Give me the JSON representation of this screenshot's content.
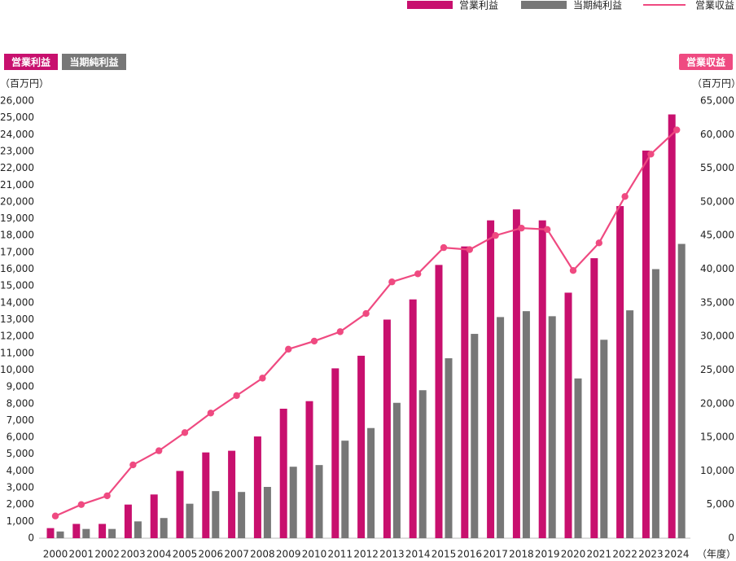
{
  "chart_data": {
    "type": "bar-line",
    "legend_position": "top-right",
    "left_axis_badges": [
      {
        "text": "営業利益",
        "color": "#c8106e"
      },
      {
        "text": "当期純利益",
        "color": "#777777"
      }
    ],
    "right_axis_badges": [
      {
        "text": "営業収益",
        "color": "#ef4a81"
      }
    ],
    "y_unit": "（百万円）",
    "y2_unit": "（百万円）",
    "x_unit": "（年度）",
    "categories": [
      "2000",
      "2001",
      "2002",
      "2003",
      "2004",
      "2005",
      "2006",
      "2007",
      "2008",
      "2009",
      "2010",
      "2011",
      "2012",
      "2013",
      "2014",
      "2015",
      "2016",
      "2017",
      "2018",
      "2019",
      "2020",
      "2021",
      "2022",
      "2023",
      "2024"
    ],
    "series": [
      {
        "name": "営業利益",
        "color": "#c8106e",
        "kind": "bar",
        "axis": "y",
        "values": [
          600,
          850,
          850,
          2000,
          2600,
          4000,
          5100,
          5200,
          6050,
          7700,
          8150,
          10100,
          10850,
          13000,
          14200,
          16250,
          17350,
          18900,
          19550,
          18900,
          14600,
          16650,
          19750,
          23050,
          25200
        ]
      },
      {
        "name": "当期純利益",
        "color": "#777777",
        "kind": "bar",
        "axis": "y",
        "values": [
          400,
          550,
          550,
          1000,
          1200,
          2050,
          2800,
          2750,
          3050,
          4250,
          4350,
          5800,
          6550,
          8050,
          8800,
          10700,
          12150,
          13150,
          13500,
          13200,
          9500,
          11800,
          13550,
          16000,
          17500
        ]
      },
      {
        "name": "営業収益",
        "color": "#ef4a81",
        "kind": "line",
        "axis": "y2",
        "values": [
          3300,
          5000,
          6300,
          10900,
          13000,
          15700,
          18600,
          21200,
          23800,
          28100,
          29300,
          30700,
          33400,
          38100,
          39300,
          43200,
          42900,
          45000,
          46100,
          45900,
          39800,
          43900,
          50800,
          57100,
          60700
        ]
      }
    ],
    "ylim": [
      0,
      26000
    ],
    "yticks": [
      0,
      {
        "value": 1000,
        "label": "1,000"
      },
      {
        "value": 2000,
        "label": "2,000"
      },
      {
        "value": 3000,
        "label": "3,000"
      },
      {
        "value": 4000,
        "label": "4,000"
      },
      {
        "value": 5000,
        "label": "5,000"
      },
      {
        "value": 6000,
        "label": "6,000"
      },
      {
        "value": 7000,
        "label": "7,000"
      },
      {
        "value": 8000,
        "label": "8,000"
      },
      {
        "value": 9000,
        "label": "9,000"
      },
      {
        "value": 10000,
        "label": "10,000"
      },
      {
        "value": 11000,
        "label": "11,000"
      },
      {
        "value": 12000,
        "label": "12,000"
      },
      {
        "value": 13000,
        "label": "13,000"
      },
      {
        "value": 14000,
        "label": "14,000"
      },
      {
        "value": 15000,
        "label": "15,000"
      },
      {
        "value": 16000,
        "label": "16,000"
      },
      {
        "value": 17000,
        "label": "17,000"
      },
      {
        "value": 18000,
        "label": "18,000"
      },
      {
        "value": 19000,
        "label": "19,000"
      },
      {
        "value": 20000,
        "label": "20,000"
      },
      {
        "value": 21000,
        "label": "21,000"
      },
      {
        "value": 22000,
        "label": "22,000"
      },
      {
        "value": 23000,
        "label": "23,000"
      },
      {
        "value": 24000,
        "label": "24,000"
      },
      {
        "value": 25000,
        "label": "25,000"
      },
      {
        "value": 26000,
        "label": "26,000"
      }
    ],
    "y2lim": [
      0,
      65000
    ],
    "y2ticks": [
      0,
      {
        "value": 5000,
        "label": "5,000"
      },
      {
        "value": 10000,
        "label": "10,000"
      },
      {
        "value": 15000,
        "label": "15,000"
      },
      {
        "value": 20000,
        "label": "20,000"
      },
      {
        "value": 25000,
        "label": "25,000"
      },
      {
        "value": 30000,
        "label": "30,000"
      },
      {
        "value": 35000,
        "label": "35,000"
      },
      {
        "value": 40000,
        "label": "40,000"
      },
      {
        "value": 45000,
        "label": "45,000"
      },
      {
        "value": 50000,
        "label": "50,000"
      },
      {
        "value": 55000,
        "label": "55,000"
      },
      {
        "value": 60000,
        "label": "60,000"
      },
      {
        "value": 65000,
        "label": "65,000"
      }
    ],
    "grid": false
  }
}
